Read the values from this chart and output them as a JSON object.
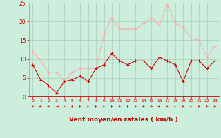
{
  "x": [
    0,
    1,
    2,
    3,
    4,
    5,
    6,
    7,
    8,
    9,
    10,
    11,
    12,
    13,
    14,
    15,
    16,
    17,
    18,
    19,
    20,
    21,
    22,
    23
  ],
  "avg_wind": [
    8.5,
    4.5,
    3.0,
    1.0,
    4.0,
    4.5,
    5.5,
    4.0,
    7.5,
    8.5,
    11.5,
    9.5,
    8.5,
    9.5,
    9.5,
    7.5,
    10.5,
    9.5,
    8.5,
    4.0,
    9.5,
    9.5,
    7.5,
    9.5
  ],
  "gust_wind": [
    12.0,
    9.5,
    6.5,
    6.5,
    4.0,
    6.5,
    7.5,
    7.5,
    7.5,
    16.5,
    21.0,
    18.0,
    18.0,
    18.0,
    19.5,
    21.0,
    19.0,
    24.5,
    19.5,
    18.5,
    15.5,
    15.0,
    10.5,
    13.5
  ],
  "avg_color": "#cc0000",
  "gust_color": "#ffaaaa",
  "background_color": "#cceedd",
  "grid_color": "#aaccbb",
  "xlabel": "Vent moyen/en rafales ( km/h )",
  "ylim": [
    0,
    25
  ],
  "xlim": [
    -0.5,
    23.5
  ],
  "yticks": [
    0,
    5,
    10,
    15,
    20,
    25
  ],
  "xticks": [
    0,
    1,
    2,
    3,
    4,
    5,
    6,
    7,
    8,
    9,
    10,
    11,
    12,
    13,
    14,
    15,
    16,
    17,
    18,
    19,
    20,
    21,
    22,
    23
  ],
  "xlabel_color": "#cc0000",
  "tick_color": "#cc0000",
  "arrow_color": "#cc0000",
  "arrow_angles_deg": [
    210,
    220,
    225,
    270,
    200,
    200,
    200,
    200,
    200,
    200,
    200,
    200,
    200,
    200,
    215,
    225,
    235,
    240,
    200,
    200,
    200,
    210,
    210,
    215
  ]
}
